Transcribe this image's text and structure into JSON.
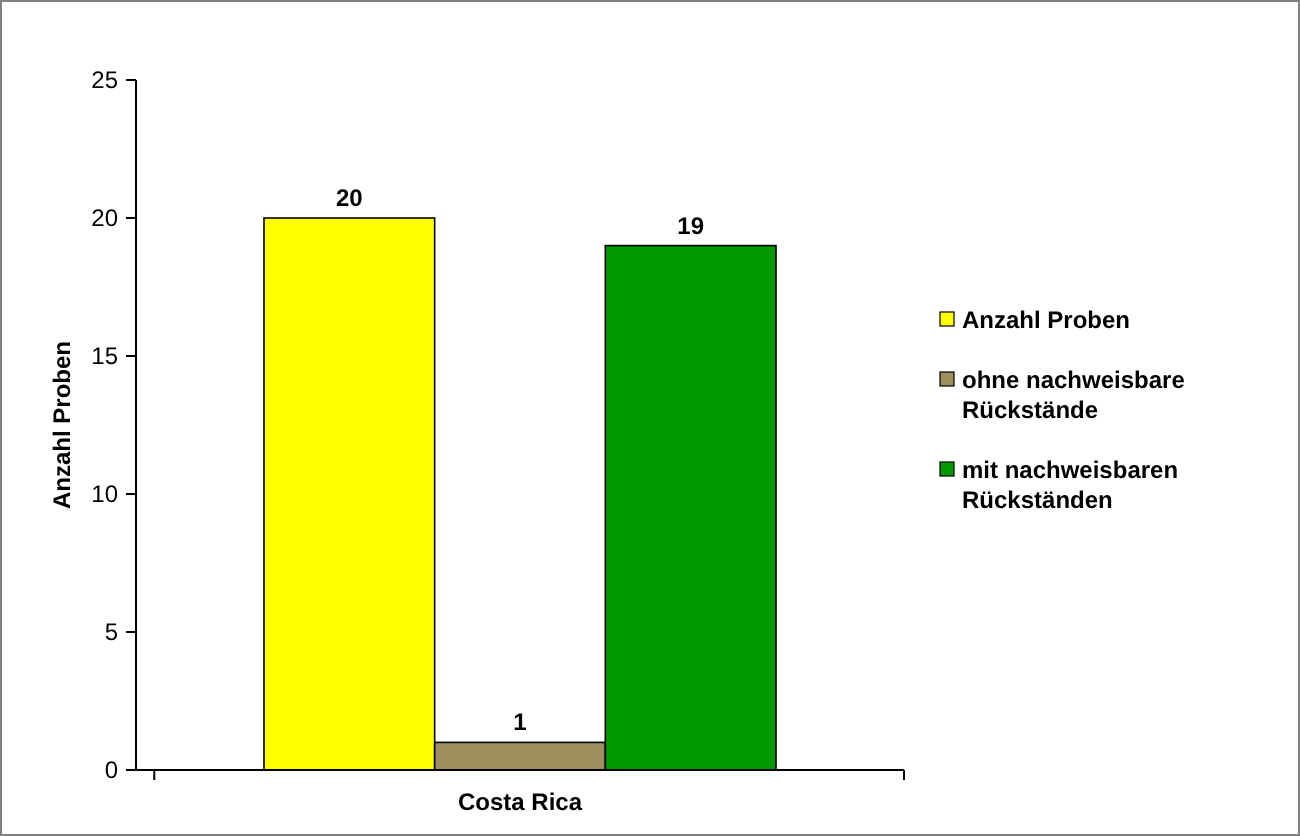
{
  "chart_data": {
    "type": "bar",
    "ylabel": "Anzahl Proben",
    "categories": [
      "Costa Rica"
    ],
    "series": [
      {
        "name": "Anzahl Proben",
        "color": "#ffff00",
        "values": [
          20
        ]
      },
      {
        "name": "ohne nachweisbare Rückstände",
        "color": "#9c8f5c",
        "values": [
          1
        ]
      },
      {
        "name": "mit nachweisbaren Rückständen",
        "color": "#009900",
        "values": [
          19
        ]
      }
    ],
    "ylim": [
      0,
      25
    ],
    "yticks": [
      0,
      5,
      10,
      15,
      20,
      25
    ],
    "data_labels": true,
    "legend": "right",
    "grid": false
  }
}
